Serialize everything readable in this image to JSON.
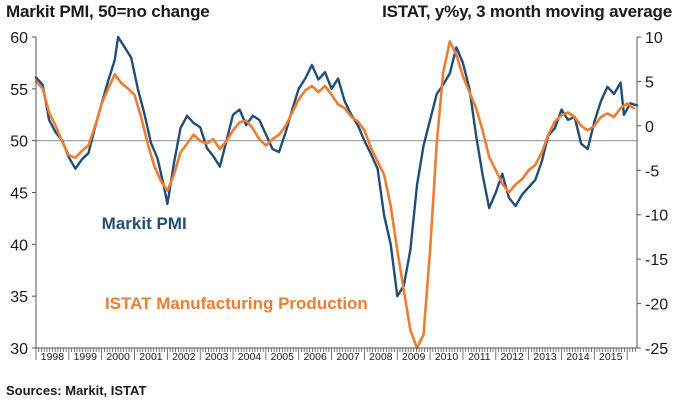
{
  "header": {
    "left_title": "Markit PMI, 50=no change",
    "right_title": "ISTAT, y%y, 3 month moving average"
  },
  "footer": {
    "source": "Sources: Markit, ISTAT"
  },
  "colors": {
    "pmi": "#1f4e79",
    "istat": "#ed7d31",
    "reference": "#9a9a9a",
    "axis": "#555555"
  },
  "chart_data": {
    "type": "line",
    "left_axis": {
      "ylim": [
        30,
        60
      ],
      "ticks": [
        30,
        35,
        40,
        45,
        50,
        55,
        60
      ]
    },
    "right_axis": {
      "ylim": [
        -25,
        10
      ],
      "ticks": [
        -25,
        -20,
        -15,
        -10,
        -5,
        0,
        5,
        10
      ]
    },
    "x_axis": {
      "range": [
        1998.0,
        2016.3
      ],
      "tick_labels": [
        "1998",
        "1999",
        "2000",
        "2001",
        "2002",
        "2003",
        "2004",
        "2005",
        "2006",
        "2007",
        "2008",
        "2009",
        "2010",
        "2011",
        "2012",
        "2013",
        "2014",
        "2015"
      ]
    },
    "reference_line": {
      "axis": "left",
      "value": 50
    },
    "series": [
      {
        "name": "Markit PMI",
        "axis": "left",
        "label_x": 2000.0,
        "label_y": 41.5,
        "points": [
          [
            1998.0,
            56.1
          ],
          [
            1998.2,
            55.4
          ],
          [
            1998.4,
            52.0
          ],
          [
            1998.6,
            50.8
          ],
          [
            1998.8,
            50.0
          ],
          [
            1999.0,
            48.4
          ],
          [
            1999.2,
            47.3
          ],
          [
            1999.4,
            48.2
          ],
          [
            1999.6,
            48.8
          ],
          [
            1999.8,
            51.3
          ],
          [
            2000.0,
            53.6
          ],
          [
            2000.2,
            55.8
          ],
          [
            2000.4,
            57.8
          ],
          [
            2000.5,
            60.0
          ],
          [
            2000.7,
            59.0
          ],
          [
            2000.9,
            58.0
          ],
          [
            2001.1,
            55.0
          ],
          [
            2001.3,
            52.6
          ],
          [
            2001.5,
            49.8
          ],
          [
            2001.7,
            48.3
          ],
          [
            2001.9,
            45.5
          ],
          [
            2002.0,
            43.9
          ],
          [
            2002.2,
            47.8
          ],
          [
            2002.4,
            51.2
          ],
          [
            2002.6,
            52.4
          ],
          [
            2002.8,
            51.7
          ],
          [
            2003.0,
            51.3
          ],
          [
            2003.2,
            49.3
          ],
          [
            2003.4,
            48.5
          ],
          [
            2003.6,
            47.5
          ],
          [
            2003.8,
            50.0
          ],
          [
            2004.0,
            52.5
          ],
          [
            2004.2,
            53.0
          ],
          [
            2004.4,
            51.5
          ],
          [
            2004.6,
            52.4
          ],
          [
            2004.8,
            52.0
          ],
          [
            2005.0,
            50.6
          ],
          [
            2005.2,
            49.2
          ],
          [
            2005.4,
            48.9
          ],
          [
            2005.6,
            50.8
          ],
          [
            2005.8,
            53.0
          ],
          [
            2006.0,
            55.0
          ],
          [
            2006.2,
            56.0
          ],
          [
            2006.4,
            57.3
          ],
          [
            2006.6,
            55.9
          ],
          [
            2006.8,
            56.6
          ],
          [
            2007.0,
            55.0
          ],
          [
            2007.2,
            56.0
          ],
          [
            2007.4,
            53.8
          ],
          [
            2007.6,
            52.5
          ],
          [
            2007.8,
            51.5
          ],
          [
            2008.0,
            50.0
          ],
          [
            2008.2,
            48.7
          ],
          [
            2008.4,
            47.3
          ],
          [
            2008.6,
            42.8
          ],
          [
            2008.8,
            40.0
          ],
          [
            2009.0,
            35.0
          ],
          [
            2009.2,
            36.0
          ],
          [
            2009.4,
            39.5
          ],
          [
            2009.6,
            45.7
          ],
          [
            2009.8,
            49.5
          ],
          [
            2010.0,
            52.0
          ],
          [
            2010.2,
            54.5
          ],
          [
            2010.4,
            55.4
          ],
          [
            2010.6,
            56.5
          ],
          [
            2010.8,
            59.0
          ],
          [
            2011.0,
            57.5
          ],
          [
            2011.2,
            55.0
          ],
          [
            2011.4,
            50.5
          ],
          [
            2011.6,
            46.7
          ],
          [
            2011.8,
            43.5
          ],
          [
            2012.0,
            45.0
          ],
          [
            2012.2,
            46.8
          ],
          [
            2012.4,
            44.5
          ],
          [
            2012.6,
            43.7
          ],
          [
            2012.8,
            44.8
          ],
          [
            2013.0,
            45.5
          ],
          [
            2013.2,
            46.2
          ],
          [
            2013.4,
            48.0
          ],
          [
            2013.6,
            50.5
          ],
          [
            2013.8,
            51.2
          ],
          [
            2014.0,
            53.0
          ],
          [
            2014.2,
            52.0
          ],
          [
            2014.4,
            52.3
          ],
          [
            2014.6,
            49.7
          ],
          [
            2014.8,
            49.2
          ],
          [
            2015.0,
            51.8
          ],
          [
            2015.2,
            53.8
          ],
          [
            2015.4,
            55.2
          ],
          [
            2015.6,
            54.5
          ],
          [
            2015.8,
            55.6
          ],
          [
            2015.9,
            52.5
          ],
          [
            2016.1,
            53.6
          ],
          [
            2016.3,
            53.4
          ]
        ]
      },
      {
        "name": "ISTAT Manufacturing Production",
        "axis": "right",
        "label_x": 2000.1,
        "label_y": -20.6,
        "points": [
          [
            1998.0,
            5.0
          ],
          [
            1998.2,
            4.2
          ],
          [
            1998.4,
            1.5
          ],
          [
            1998.6,
            0.0
          ],
          [
            1998.8,
            -1.8
          ],
          [
            1999.0,
            -3.3
          ],
          [
            1999.2,
            -3.6
          ],
          [
            1999.4,
            -2.8
          ],
          [
            1999.6,
            -2.2
          ],
          [
            1999.8,
            0.0
          ],
          [
            2000.0,
            2.5
          ],
          [
            2000.2,
            4.2
          ],
          [
            2000.4,
            5.8
          ],
          [
            2000.6,
            4.8
          ],
          [
            2000.8,
            4.2
          ],
          [
            2001.0,
            3.5
          ],
          [
            2001.2,
            1.0
          ],
          [
            2001.4,
            -2.0
          ],
          [
            2001.6,
            -4.5
          ],
          [
            2001.8,
            -6.2
          ],
          [
            2002.0,
            -7.3
          ],
          [
            2002.2,
            -5.5
          ],
          [
            2002.4,
            -3.0
          ],
          [
            2002.6,
            -2.0
          ],
          [
            2002.8,
            -1.0
          ],
          [
            2003.0,
            -1.7
          ],
          [
            2003.2,
            -2.0
          ],
          [
            2003.4,
            -1.5
          ],
          [
            2003.6,
            -2.6
          ],
          [
            2003.8,
            -1.7
          ],
          [
            2004.0,
            -0.5
          ],
          [
            2004.2,
            0.4
          ],
          [
            2004.4,
            0.6
          ],
          [
            2004.6,
            -0.3
          ],
          [
            2004.8,
            -1.5
          ],
          [
            2005.0,
            -2.2
          ],
          [
            2005.2,
            -1.5
          ],
          [
            2005.4,
            -1.0
          ],
          [
            2005.6,
            0.0
          ],
          [
            2005.8,
            1.5
          ],
          [
            2006.0,
            3.0
          ],
          [
            2006.2,
            4.0
          ],
          [
            2006.4,
            4.5
          ],
          [
            2006.6,
            3.8
          ],
          [
            2006.8,
            4.5
          ],
          [
            2007.0,
            3.5
          ],
          [
            2007.2,
            2.4
          ],
          [
            2007.4,
            2.0
          ],
          [
            2007.6,
            1.0
          ],
          [
            2007.8,
            0.5
          ],
          [
            2008.0,
            -0.5
          ],
          [
            2008.2,
            -2.5
          ],
          [
            2008.4,
            -4.0
          ],
          [
            2008.6,
            -5.5
          ],
          [
            2008.8,
            -9.0
          ],
          [
            2009.0,
            -14.0
          ],
          [
            2009.2,
            -18.5
          ],
          [
            2009.4,
            -23.0
          ],
          [
            2009.6,
            -25.0
          ],
          [
            2009.8,
            -23.5
          ],
          [
            2010.0,
            -14.0
          ],
          [
            2010.2,
            -2.0
          ],
          [
            2010.4,
            6.0
          ],
          [
            2010.6,
            9.5
          ],
          [
            2010.8,
            8.0
          ],
          [
            2011.0,
            5.6
          ],
          [
            2011.2,
            3.8
          ],
          [
            2011.4,
            2.0
          ],
          [
            2011.6,
            -0.5
          ],
          [
            2011.8,
            -3.5
          ],
          [
            2012.0,
            -5.0
          ],
          [
            2012.2,
            -6.5
          ],
          [
            2012.4,
            -7.5
          ],
          [
            2012.6,
            -6.6
          ],
          [
            2012.8,
            -6.0
          ],
          [
            2013.0,
            -5.0
          ],
          [
            2013.2,
            -4.4
          ],
          [
            2013.4,
            -3.0
          ],
          [
            2013.6,
            -1.0
          ],
          [
            2013.8,
            0.5
          ],
          [
            2014.0,
            1.2
          ],
          [
            2014.2,
            1.5
          ],
          [
            2014.4,
            1.0
          ],
          [
            2014.6,
            0.0
          ],
          [
            2014.8,
            -0.5
          ],
          [
            2015.0,
            0.0
          ],
          [
            2015.2,
            1.0
          ],
          [
            2015.4,
            1.4
          ],
          [
            2015.6,
            1.0
          ],
          [
            2015.8,
            2.0
          ],
          [
            2016.0,
            2.5
          ],
          [
            2016.2,
            2.0
          ]
        ]
      }
    ]
  }
}
